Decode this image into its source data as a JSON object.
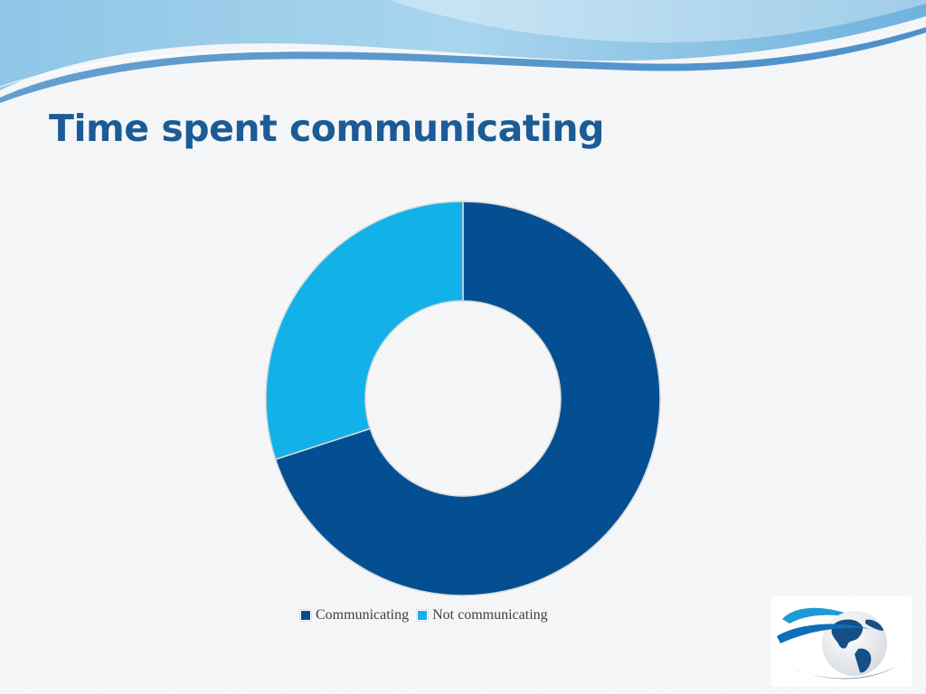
{
  "slide": {
    "title": "Time spent communicating"
  },
  "colors": {
    "title": "#1b5b96",
    "communicating": "#034f91",
    "not_communicating": "#12b2e8",
    "slice_border": "#d9d9d9"
  },
  "icons": {
    "logo": "globe-swoosh-logo",
    "header": "blue-wave-banner"
  },
  "chart_data": {
    "type": "pie",
    "variant": "donut",
    "title": "",
    "categories": [
      "Communicating",
      "Not communicating"
    ],
    "values": [
      70,
      30
    ],
    "legend": {
      "position": "bottom",
      "entries": [
        "Communicating",
        "Not communicating"
      ]
    }
  }
}
